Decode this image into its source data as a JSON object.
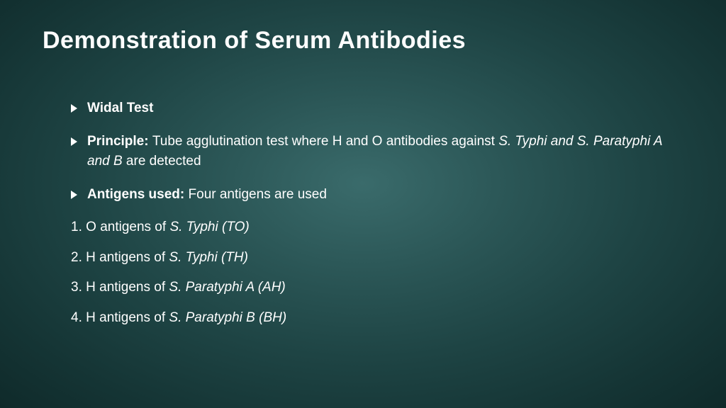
{
  "slide": {
    "title": "Demonstration of Serum Antibodies",
    "bullets": [
      {
        "bold_prefix": "Widal Test",
        "normal_text": "",
        "italic_text": "",
        "trailing_text": ""
      },
      {
        "bold_prefix": "Principle: ",
        "normal_text": "Tube agglutination test where H and O antibodies against ",
        "italic_text": "S. Typhi and S. Paratyphi A and B",
        "trailing_text": " are detected"
      },
      {
        "bold_prefix": "Antigens used: ",
        "normal_text": "Four antigens are used",
        "italic_text": "",
        "trailing_text": ""
      }
    ],
    "numbered": [
      {
        "number": "1.",
        "normal_text": "O antigens of ",
        "italic_text": "S. Typhi (TO)"
      },
      {
        "number": "2.",
        "normal_text": "H antigens of ",
        "italic_text": "S. Typhi (TH)"
      },
      {
        "number": "3.",
        "normal_text": "H antigens of ",
        "italic_text": "S. Paratyphi A (AH)"
      },
      {
        "number": "4.",
        "normal_text": "H antigens of ",
        "italic_text": "S. Paratyphi B (BH)"
      }
    ]
  },
  "style": {
    "background_gradient_center": "#3a6b6b",
    "background_gradient_edge": "#0f2a2a",
    "text_color": "#ffffff",
    "title_fontsize": 34,
    "body_fontsize": 19,
    "bullet_marker_color": "#ffffff"
  }
}
